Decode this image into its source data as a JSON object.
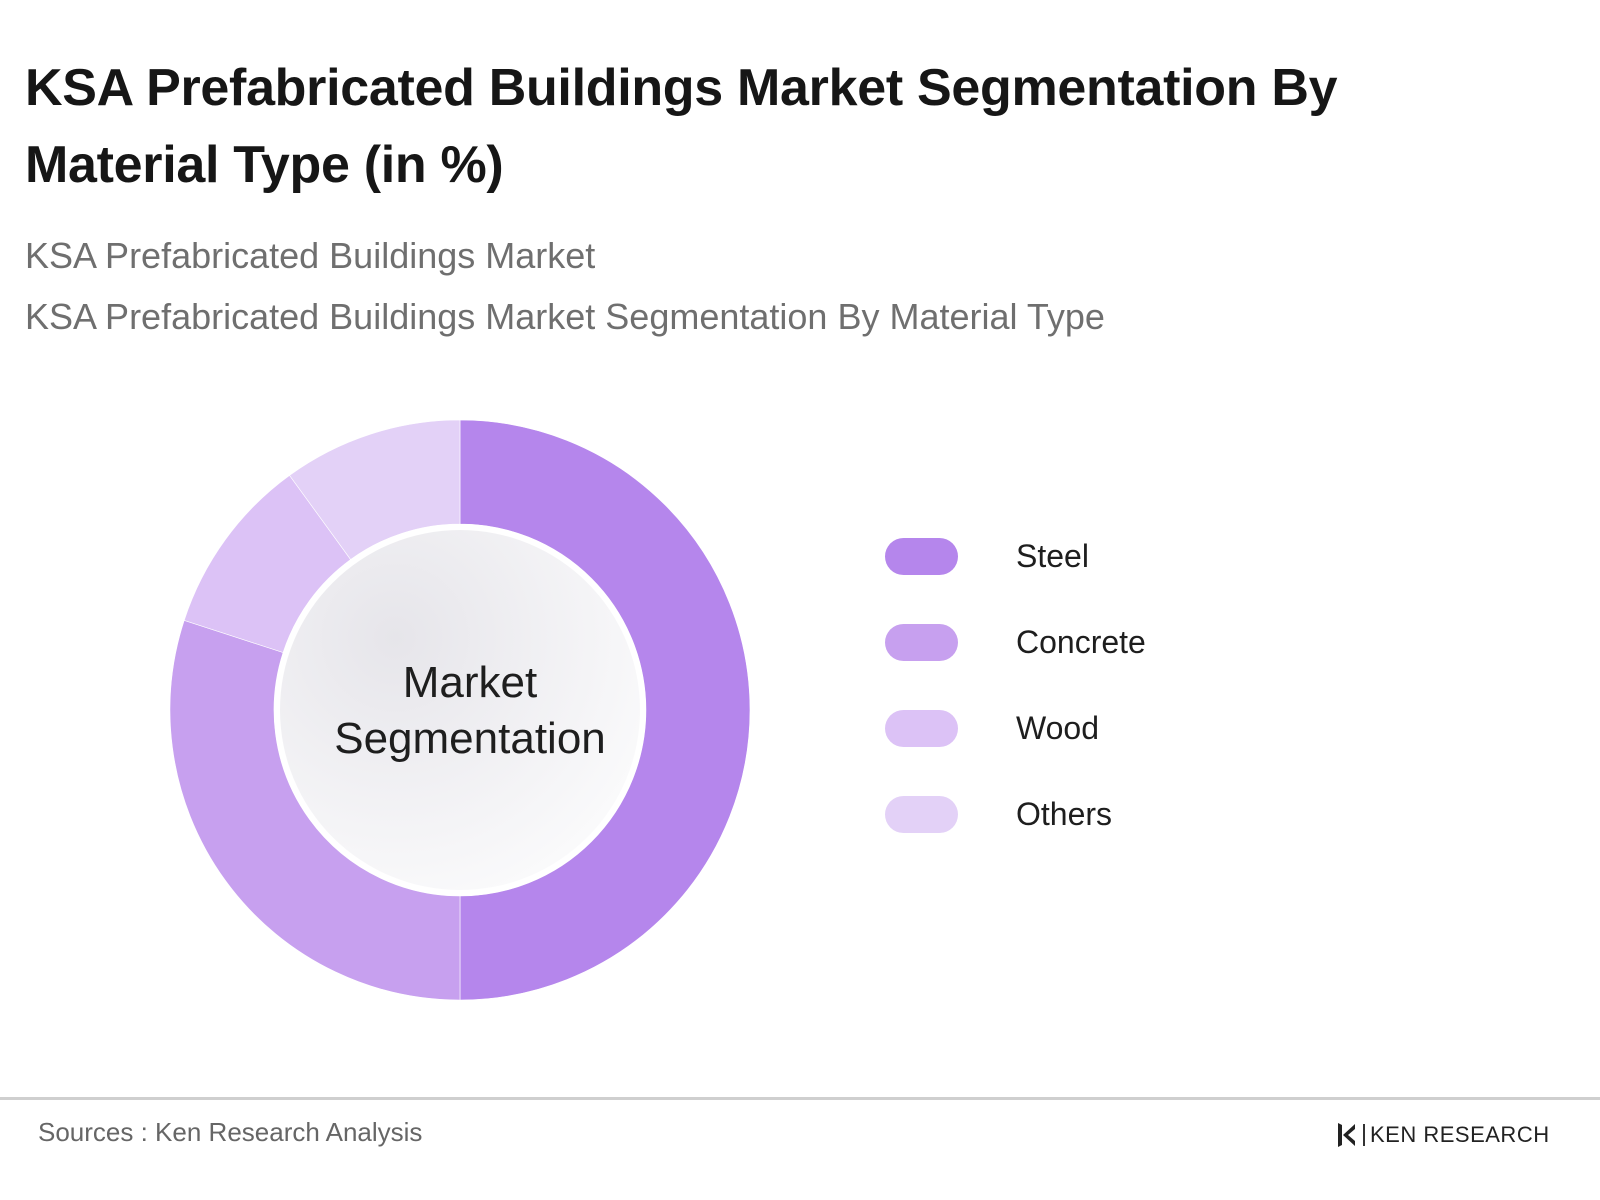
{
  "header": {
    "title": "KSA Prefabricated Buildings Market Segmentation By Material Type (in %)",
    "subtitle_1": "KSA Prefabricated Buildings Market",
    "subtitle_2": "KSA Prefabricated Buildings Market Segmentation By Material Type"
  },
  "chart_data": {
    "type": "pie",
    "variant": "donut",
    "categories": [
      "Steel",
      "Concrete",
      "Wood",
      "Others"
    ],
    "values": [
      50,
      30,
      10,
      10
    ],
    "colors": [
      "#b586ec",
      "#c7a0ef",
      "#dcc2f6",
      "#e3d1f7"
    ],
    "center_label_lines": [
      "Market",
      "Segmentation"
    ],
    "legend_position": "right",
    "start": "top",
    "direction": "clockwise"
  },
  "footer": {
    "source": "Sources : Ken Research Analysis",
    "brand": "KEN RESEARCH"
  },
  "icons": {
    "brand_logo": "ken-research-logo-icon"
  }
}
